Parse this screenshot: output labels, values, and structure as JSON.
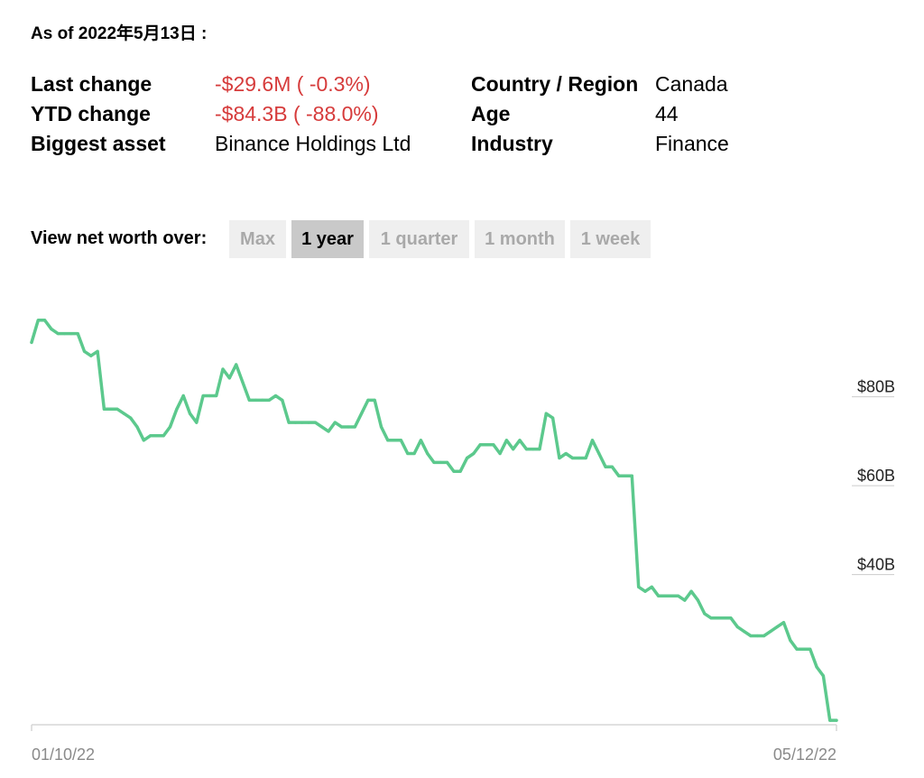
{
  "as_of": "As of 2022年5月13日 :",
  "stats": {
    "last_change": {
      "label": "Last change",
      "value": "-$29.6M ( -0.3%)"
    },
    "ytd_change": {
      "label": "YTD change",
      "value": "-$84.3B ( -88.0%)"
    },
    "biggest_asset": {
      "label": "Biggest asset",
      "value": "Binance Holdings Ltd"
    },
    "country": {
      "label": "Country / Region",
      "value": "Canada"
    },
    "age": {
      "label": "Age",
      "value": "44"
    },
    "industry": {
      "label": "Industry",
      "value": "Finance"
    }
  },
  "view": {
    "label": "View net worth over:",
    "options": [
      "Max",
      "1 year",
      "1 quarter",
      "1 month",
      "1 week"
    ],
    "selected": "1 year"
  },
  "colors": {
    "line": "#5cc98d",
    "negative": "#d63b3b"
  },
  "chart_data": {
    "type": "line",
    "x_start": "01/10/22",
    "x_end": "05/12/22",
    "y_unit": "$B",
    "ylim": [
      4,
      98
    ],
    "y_ticks": [
      {
        "value": 80,
        "label": "$80B"
      },
      {
        "value": 60,
        "label": "$60B"
      },
      {
        "value": 40,
        "label": "$40B"
      }
    ],
    "x_tick_labels": [
      "01/10/22",
      "05/12/22"
    ],
    "values": [
      90,
      95,
      95,
      93,
      92,
      92,
      92,
      92,
      88,
      87,
      88,
      75,
      75,
      75,
      74,
      73,
      71,
      68,
      69,
      69,
      69,
      71,
      75,
      78,
      74,
      72,
      78,
      78,
      78,
      84,
      82,
      85,
      81,
      77,
      77,
      77,
      77,
      78,
      77,
      72,
      72,
      72,
      72,
      72,
      71,
      70,
      72,
      71,
      71,
      71,
      74,
      77,
      77,
      71,
      68,
      68,
      68,
      65,
      65,
      68,
      65,
      63,
      63,
      63,
      61,
      61,
      64,
      65,
      67,
      67,
      67,
      65,
      68,
      66,
      68,
      66,
      66,
      66,
      74,
      73,
      64,
      65,
      64,
      64,
      64,
      68,
      65,
      62,
      62,
      60,
      60,
      60,
      35,
      34,
      35,
      33,
      33,
      33,
      33,
      32,
      34,
      32,
      29,
      28,
      28,
      28,
      28,
      26,
      25,
      24,
      24,
      24,
      25,
      26,
      27,
      23,
      21,
      21,
      21,
      17,
      15,
      5,
      5
    ]
  }
}
